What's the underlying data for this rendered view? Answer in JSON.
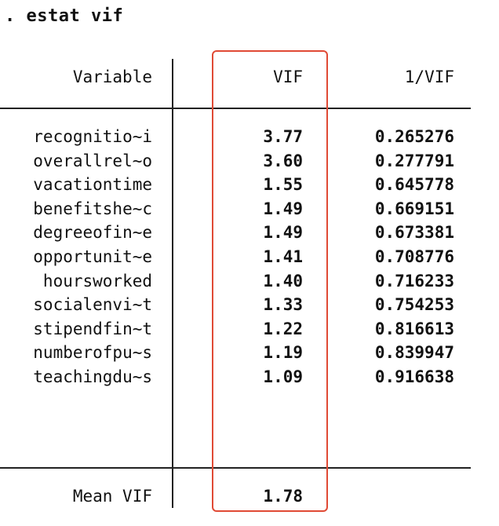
{
  "command": ". estat vif",
  "table": {
    "headers": {
      "variable": "Variable",
      "vif": "VIF",
      "inv_vif": "1/VIF"
    },
    "rows": [
      {
        "variable": "recognitio~i",
        "vif": "3.77",
        "inv_vif": "0.265276"
      },
      {
        "variable": "overallrel~o",
        "vif": "3.60",
        "inv_vif": "0.277791"
      },
      {
        "variable": "vacationtime",
        "vif": "1.55",
        "inv_vif": "0.645778"
      },
      {
        "variable": "benefitshe~c",
        "vif": "1.49",
        "inv_vif": "0.669151"
      },
      {
        "variable": "degreeofin~e",
        "vif": "1.49",
        "inv_vif": "0.673381"
      },
      {
        "variable": "opportunit~e",
        "vif": "1.41",
        "inv_vif": "0.708776"
      },
      {
        "variable": "hoursworked",
        "vif": "1.40",
        "inv_vif": "0.716233"
      },
      {
        "variable": "socialenvi~t",
        "vif": "1.33",
        "inv_vif": "0.754253"
      },
      {
        "variable": "stipendfin~t",
        "vif": "1.22",
        "inv_vif": "0.816613"
      },
      {
        "variable": "numberofpu~s",
        "vif": "1.19",
        "inv_vif": "0.839947"
      },
      {
        "variable": "teachingdu~s",
        "vif": "1.09",
        "inv_vif": "0.916638"
      }
    ],
    "footer": {
      "label": "Mean VIF",
      "vif": "1.78"
    }
  },
  "highlight_color": "#e04a35"
}
